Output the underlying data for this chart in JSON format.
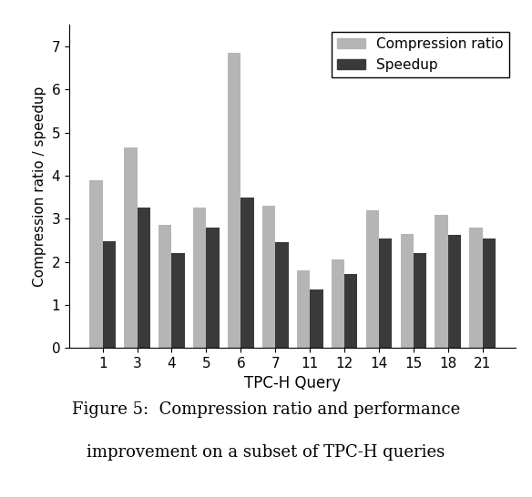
{
  "categories": [
    "1",
    "3",
    "4",
    "5",
    "6",
    "7",
    "11",
    "12",
    "14",
    "15",
    "18",
    "21"
  ],
  "compression_ratio": [
    3.9,
    4.65,
    2.85,
    3.25,
    6.85,
    3.3,
    1.8,
    2.05,
    3.2,
    2.65,
    3.1,
    2.8
  ],
  "speedup": [
    2.48,
    3.25,
    2.2,
    2.8,
    3.5,
    2.45,
    1.35,
    1.72,
    2.55,
    2.2,
    2.62,
    2.55
  ],
  "compression_color": "#b5b5b5",
  "speedup_color": "#3a3a3a",
  "xlabel": "TPC-H Query",
  "ylabel": "Compression ratio / speedup",
  "legend_labels": [
    "Compression ratio",
    "Speedup"
  ],
  "ylim": [
    0,
    7.5
  ],
  "yticks": [
    0,
    1,
    2,
    3,
    4,
    5,
    6,
    7
  ],
  "bar_width": 0.38,
  "caption_line1": "Figure 5:  Compression ratio and performance",
  "caption_line2": "improvement on a subset of TPC-H queries"
}
